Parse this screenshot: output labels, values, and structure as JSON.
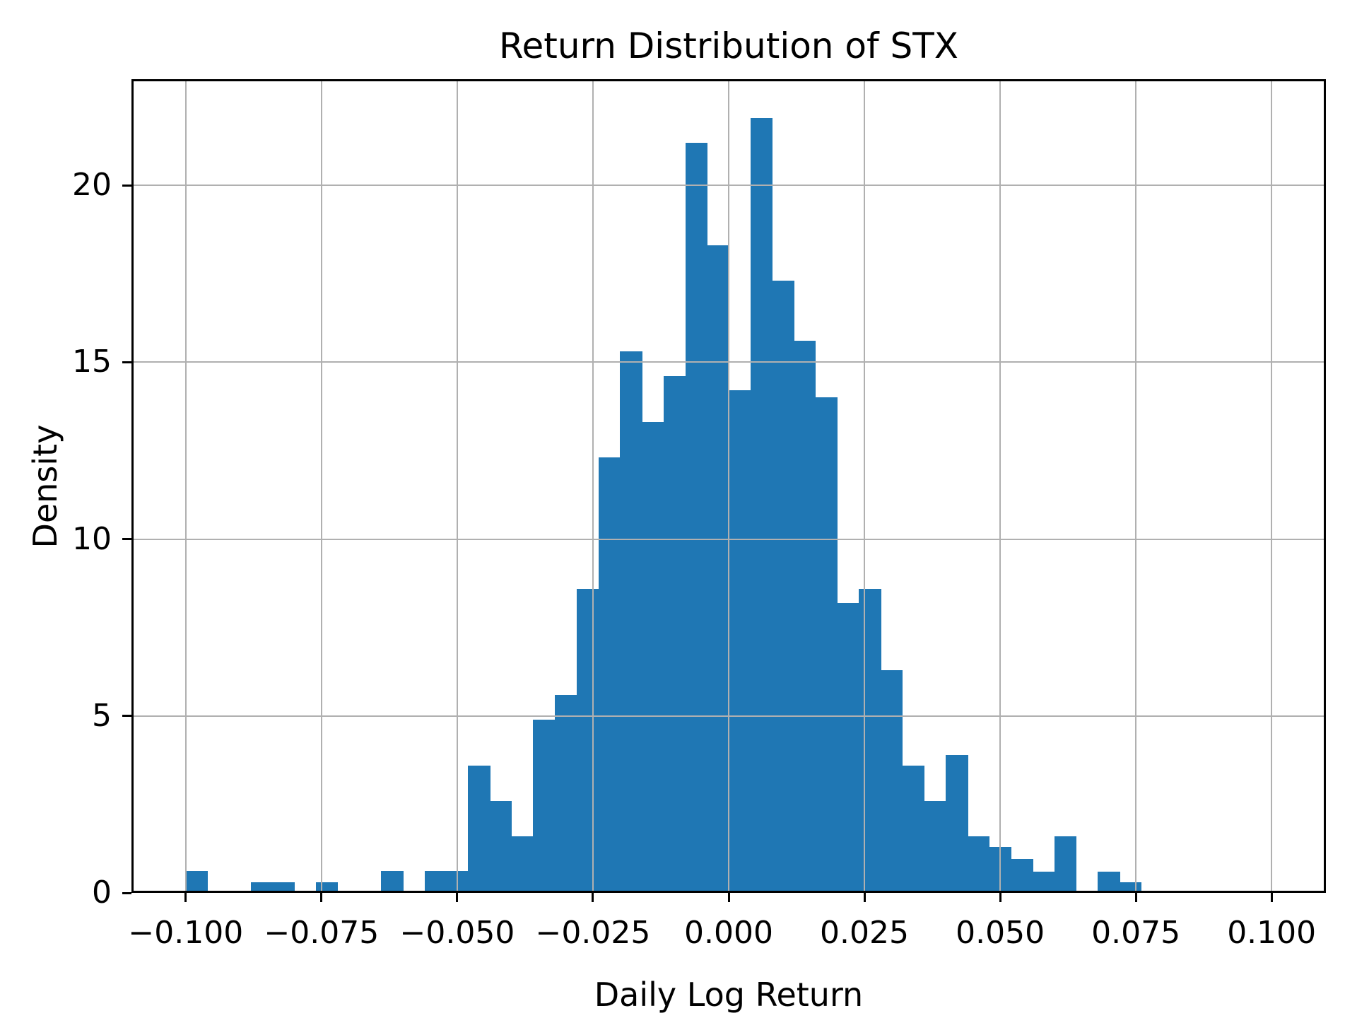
{
  "title": "Return Distribution of STX",
  "xlabel": "Daily Log Return",
  "ylabel": "Density",
  "colors": {
    "bar": "#1f77b4",
    "grid": "#b0b0b0",
    "axis": "#000000",
    "text": "#000000",
    "background": "#ffffff"
  },
  "chart_data": {
    "type": "bar",
    "subtype": "histogram",
    "title": "Return Distribution of STX",
    "xlabel": "Daily Log Return",
    "ylabel": "Density",
    "grid": true,
    "grid_above_bars": true,
    "legend": false,
    "xlim": [
      -0.11,
      0.11
    ],
    "ylim": [
      0,
      23
    ],
    "bin_width": 0.004,
    "bin_start": -0.1,
    "bin_left_edges": [
      -0.1,
      -0.096,
      -0.092,
      -0.088,
      -0.084,
      -0.08,
      -0.076,
      -0.072,
      -0.068,
      -0.064,
      -0.06,
      -0.056,
      -0.052,
      -0.048,
      -0.044,
      -0.04,
      -0.036,
      -0.032,
      -0.028,
      -0.024,
      -0.02,
      -0.016,
      -0.012,
      -0.008,
      -0.004,
      0.0,
      0.004,
      0.008,
      0.012,
      0.016,
      0.02,
      0.024,
      0.028,
      0.032,
      0.036,
      0.04,
      0.044,
      0.048,
      0.052,
      0.056,
      0.06,
      0.064,
      0.068,
      0.072
    ],
    "densities": [
      0.62,
      0,
      0,
      0.31,
      0.31,
      0,
      0.31,
      0,
      0,
      0.62,
      0,
      0.62,
      0.62,
      3.6,
      2.6,
      1.6,
      4.9,
      5.6,
      8.6,
      12.3,
      15.3,
      13.3,
      14.6,
      21.2,
      18.3,
      14.2,
      21.9,
      17.3,
      15.6,
      14.0,
      8.2,
      8.6,
      6.3,
      3.6,
      2.6,
      3.9,
      1.6,
      1.3,
      0.95,
      0.6,
      1.6,
      0,
      0.6,
      0.3
    ],
    "xticks": [
      -0.1,
      -0.075,
      -0.05,
      -0.025,
      0.0,
      0.025,
      0.05,
      0.075,
      0.1
    ],
    "xtick_labels": [
      "−0.100",
      "−0.075",
      "−0.050",
      "−0.025",
      "0.000",
      "0.025",
      "0.050",
      "0.075",
      "0.100"
    ],
    "yticks": [
      0,
      5,
      10,
      15,
      20
    ],
    "ytick_labels": [
      "0",
      "5",
      "10",
      "15",
      "20"
    ]
  }
}
